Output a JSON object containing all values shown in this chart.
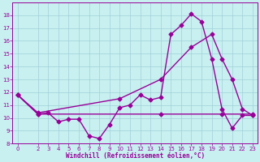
{
  "xlabel": "Windchill (Refroidissement éolien,°C)",
  "bg_color": "#c8f0f0",
  "grid_color": "#a0d0d8",
  "line_color": "#990099",
  "xlim": [
    -0.5,
    23.5
  ],
  "ylim": [
    8,
    19
  ],
  "yticks": [
    8,
    9,
    10,
    11,
    12,
    13,
    14,
    15,
    16,
    17,
    18
  ],
  "xticks": [
    0,
    2,
    3,
    4,
    5,
    6,
    7,
    8,
    9,
    10,
    11,
    12,
    13,
    14,
    15,
    16,
    17,
    18,
    19,
    20,
    21,
    22,
    23
  ],
  "line1_x": [
    0,
    2,
    3,
    4,
    5,
    6,
    7,
    8,
    9,
    10,
    11,
    12,
    13,
    14,
    15,
    16,
    17,
    18,
    19,
    20,
    21,
    22,
    23
  ],
  "line1_y": [
    11.8,
    10.3,
    10.4,
    9.7,
    9.9,
    9.9,
    8.6,
    8.4,
    9.5,
    10.8,
    11.0,
    11.8,
    11.4,
    11.6,
    16.5,
    17.2,
    18.1,
    17.5,
    14.6,
    10.7,
    9.2,
    10.2,
    10.2
  ],
  "line2_x": [
    0,
    2,
    14,
    20,
    23
  ],
  "line2_y": [
    11.8,
    10.3,
    10.3,
    10.3,
    10.3
  ],
  "line3_x": [
    0,
    2,
    10,
    14,
    17,
    19,
    20,
    21,
    22,
    23
  ],
  "line3_y": [
    11.8,
    10.4,
    11.5,
    13.0,
    15.5,
    16.5,
    14.6,
    13.0,
    10.7,
    10.2
  ],
  "marker": "D",
  "markersize": 2.5,
  "linewidth": 1.0
}
